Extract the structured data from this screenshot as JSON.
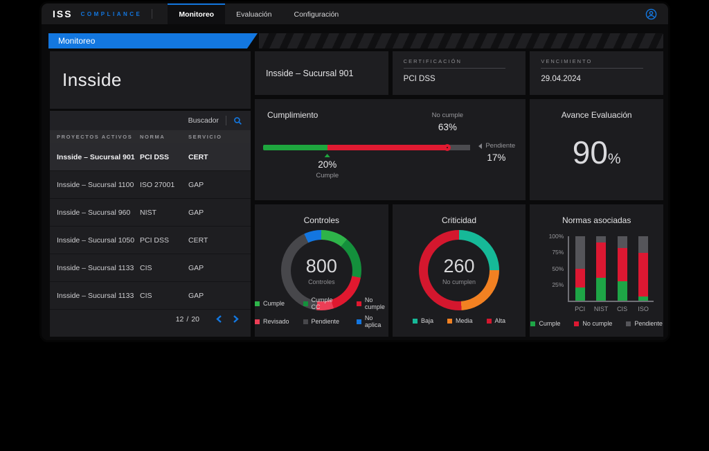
{
  "nav": {
    "brand": "ISS",
    "brand_sub": "COMPLIANCE",
    "tabs": [
      {
        "label": "Monitoreo",
        "active": true
      },
      {
        "label": "Evaluación",
        "active": false
      },
      {
        "label": "Configuración",
        "active": false
      }
    ]
  },
  "ribbon": {
    "label": "Monitoreo"
  },
  "colors": {
    "accent_blue": "#1377e0",
    "green": "#1ea63e",
    "red": "#e01a31",
    "gray": "#4b4b4f"
  },
  "sidebar": {
    "title": "Insside",
    "search_label": "Buscador",
    "table": {
      "columns": [
        "PROYECTOS ACTIVOS",
        "NORMA",
        "SERVICIO"
      ],
      "rows": [
        {
          "proyecto": "Insside – Sucursal 901",
          "norma": "PCI DSS",
          "servicio": "CERT",
          "selected": true
        },
        {
          "proyecto": "Insside – Sucursal 1100",
          "norma": "ISO 27001",
          "servicio": "GAP",
          "selected": false
        },
        {
          "proyecto": "Insside – Sucursal 960",
          "norma": "NIST",
          "servicio": "GAP",
          "selected": false
        },
        {
          "proyecto": "Insside – Sucursal 1050",
          "norma": "PCI DSS",
          "servicio": "CERT",
          "selected": false
        },
        {
          "proyecto": "Insside – Sucursal 1133",
          "norma": "CIS",
          "servicio": "GAP",
          "selected": false
        },
        {
          "proyecto": "Insside – Sucursal 1133",
          "norma": "CIS",
          "servicio": "GAP",
          "selected": false
        }
      ],
      "pagination": {
        "current": "12",
        "sep": "/",
        "total": "20"
      }
    }
  },
  "detail": {
    "title": "Insside – Sucursal 901",
    "certification": {
      "label": "CERTIFICACIÓN",
      "value": "PCI DSS"
    },
    "expiry": {
      "label": "VENCIMIENTO",
      "value": "29.04.2024"
    }
  },
  "avance": {
    "title": "Avance Evaluación",
    "value": "90",
    "unit": "%"
  },
  "chart_data": [
    {
      "id": "cumplimiento",
      "type": "progress-bar",
      "title": "Cumplimiento",
      "segments": [
        {
          "label": "Cumple",
          "value": 20,
          "display": "20%",
          "color": "#1ea63e",
          "bar_width_pct": 31
        },
        {
          "label": "No cumple",
          "value": 63,
          "display": "63%",
          "color": "#e01a31",
          "bar_width_pct": 58
        },
        {
          "label": "Pendiente",
          "value": 17,
          "display": "17%",
          "color": "#4b4b4f",
          "bar_width_pct": 11
        }
      ],
      "marker_pos_pct": 89,
      "xlim": [
        0,
        100
      ]
    },
    {
      "id": "controles",
      "type": "donut",
      "title": "Controles",
      "center_value": "800",
      "center_label": "Controles",
      "slices": [
        {
          "label": "Cumple",
          "pct": 11,
          "color": "#2eb44a"
        },
        {
          "label": "Cumple CC",
          "pct": 17,
          "color": "#14903c"
        },
        {
          "label": "No cumple",
          "pct": 17,
          "color": "#e0182f"
        },
        {
          "label": "Revisado",
          "pct": 7,
          "color": "#ec3e56"
        },
        {
          "label": "Pendiente",
          "pct": 41,
          "color": "#47474b"
        },
        {
          "label": "No aplica",
          "pct": 7,
          "color": "#1376e0"
        }
      ],
      "legend_position": "bottom"
    },
    {
      "id": "criticidad",
      "type": "donut",
      "title": "Criticidad",
      "center_value": "260",
      "center_label": "No cumplen",
      "slices": [
        {
          "label": "Baja",
          "pct": 25,
          "color": "#16b998"
        },
        {
          "label": "Media",
          "pct": 24,
          "color": "#f28122"
        },
        {
          "label": "Alta",
          "pct": 51,
          "color": "#d4172e"
        }
      ],
      "legend_position": "bottom"
    },
    {
      "id": "normas",
      "type": "stacked-bar",
      "title": "Normas asociadas",
      "categories": [
        "PCI",
        "NIST",
        "CIS",
        "ISO"
      ],
      "series": [
        {
          "name": "Cumple",
          "color": "#1ea546",
          "values": [
            20,
            36,
            30,
            7
          ]
        },
        {
          "name": "No cumple",
          "color": "#dc1832",
          "values": [
            30,
            54,
            52,
            67
          ]
        },
        {
          "name": "Pendiente",
          "color": "#55555a",
          "values": [
            50,
            10,
            18,
            26
          ]
        }
      ],
      "yticks": [
        {
          "label": "25%",
          "pct": 25
        },
        {
          "label": "50%",
          "pct": 50
        },
        {
          "label": "75%",
          "pct": 75
        },
        {
          "label": "100%",
          "pct": 100
        }
      ],
      "ylim": [
        0,
        100
      ],
      "grid": false,
      "legend_position": "bottom"
    }
  ]
}
